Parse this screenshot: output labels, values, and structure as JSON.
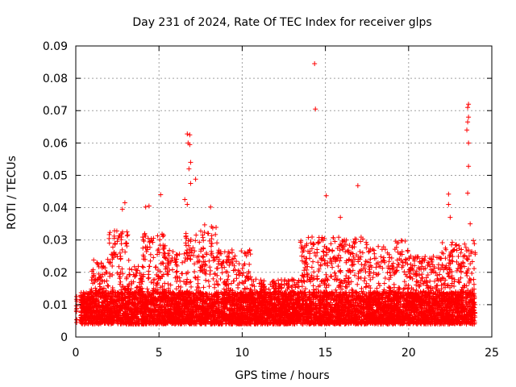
{
  "chart_data": {
    "type": "scatter",
    "title": "Day 231 of 2024, Rate Of TEC Index for receiver glps",
    "xlabel": "GPS time / hours",
    "ylabel": "ROTI / TECUs",
    "xlim": [
      0,
      25
    ],
    "ylim": [
      0,
      0.09
    ],
    "xticks": [
      "0",
      "5",
      "10",
      "15",
      "20",
      "25"
    ],
    "yticks": [
      "0",
      "0.01",
      "0.02",
      "0.03",
      "0.04",
      "0.05",
      "0.06",
      "0.07",
      "0.08",
      "0.09"
    ],
    "grid": true,
    "marker": "+",
    "color": "#ff0000",
    "notable_points": [
      {
        "x": 14.35,
        "y": 0.0845
      },
      {
        "x": 14.4,
        "y": 0.0705
      },
      {
        "x": 23.6,
        "y": 0.072
      },
      {
        "x": 23.55,
        "y": 0.071
      },
      {
        "x": 23.6,
        "y": 0.068
      },
      {
        "x": 23.55,
        "y": 0.0665
      },
      {
        "x": 23.5,
        "y": 0.064
      },
      {
        "x": 23.6,
        "y": 0.06
      },
      {
        "x": 23.6,
        "y": 0.0528
      },
      {
        "x": 23.55,
        "y": 0.0445
      },
      {
        "x": 6.7,
        "y": 0.0628
      },
      {
        "x": 6.85,
        "y": 0.0625
      },
      {
        "x": 6.75,
        "y": 0.06
      },
      {
        "x": 6.85,
        "y": 0.0595
      },
      {
        "x": 6.9,
        "y": 0.054
      },
      {
        "x": 6.8,
        "y": 0.052
      },
      {
        "x": 7.2,
        "y": 0.0488
      },
      {
        "x": 6.9,
        "y": 0.0475
      },
      {
        "x": 16.95,
        "y": 0.0468
      },
      {
        "x": 5.1,
        "y": 0.044
      },
      {
        "x": 15.05,
        "y": 0.0437
      },
      {
        "x": 22.4,
        "y": 0.0442
      },
      {
        "x": 22.4,
        "y": 0.041
      },
      {
        "x": 2.95,
        "y": 0.0415
      },
      {
        "x": 6.55,
        "y": 0.0425
      },
      {
        "x": 6.7,
        "y": 0.041
      },
      {
        "x": 4.2,
        "y": 0.0402
      },
      {
        "x": 4.4,
        "y": 0.0405
      },
      {
        "x": 8.1,
        "y": 0.0402
      },
      {
        "x": 2.8,
        "y": 0.0395
      },
      {
        "x": 15.9,
        "y": 0.037
      },
      {
        "x": 22.5,
        "y": 0.037
      },
      {
        "x": 23.7,
        "y": 0.035
      },
      {
        "x": 0.05,
        "y": 0.0125
      },
      {
        "x": 0.05,
        "y": 0.0045
      }
    ],
    "bulk": {
      "description_free": true,
      "x_range": [
        0.3,
        24.0
      ],
      "gap_x": [
        0.05,
        0.3
      ],
      "segments": [
        {
          "x0": 0.3,
          "x1": 0.9,
          "top": 0.012
        },
        {
          "x0": 0.9,
          "x1": 2.0,
          "top": 0.024
        },
        {
          "x0": 2.0,
          "x1": 3.2,
          "top": 0.033
        },
        {
          "x0": 3.2,
          "x1": 4.0,
          "top": 0.022
        },
        {
          "x0": 4.0,
          "x1": 5.5,
          "top": 0.032
        },
        {
          "x0": 5.5,
          "x1": 6.5,
          "top": 0.027
        },
        {
          "x0": 6.5,
          "x1": 7.5,
          "top": 0.032
        },
        {
          "x0": 7.5,
          "x1": 8.5,
          "top": 0.035
        },
        {
          "x0": 8.5,
          "x1": 10.5,
          "top": 0.027
        },
        {
          "x0": 10.5,
          "x1": 13.5,
          "top": 0.018
        },
        {
          "x0": 13.5,
          "x1": 15.5,
          "top": 0.031
        },
        {
          "x0": 15.5,
          "x1": 17.5,
          "top": 0.031
        },
        {
          "x0": 17.5,
          "x1": 18.9,
          "top": 0.028
        },
        {
          "x0": 18.9,
          "x1": 20.0,
          "top": 0.03
        },
        {
          "x0": 20.0,
          "x1": 22.0,
          "top": 0.025
        },
        {
          "x0": 22.0,
          "x1": 24.0,
          "top": 0.03
        }
      ],
      "floor": 0.002
    }
  }
}
